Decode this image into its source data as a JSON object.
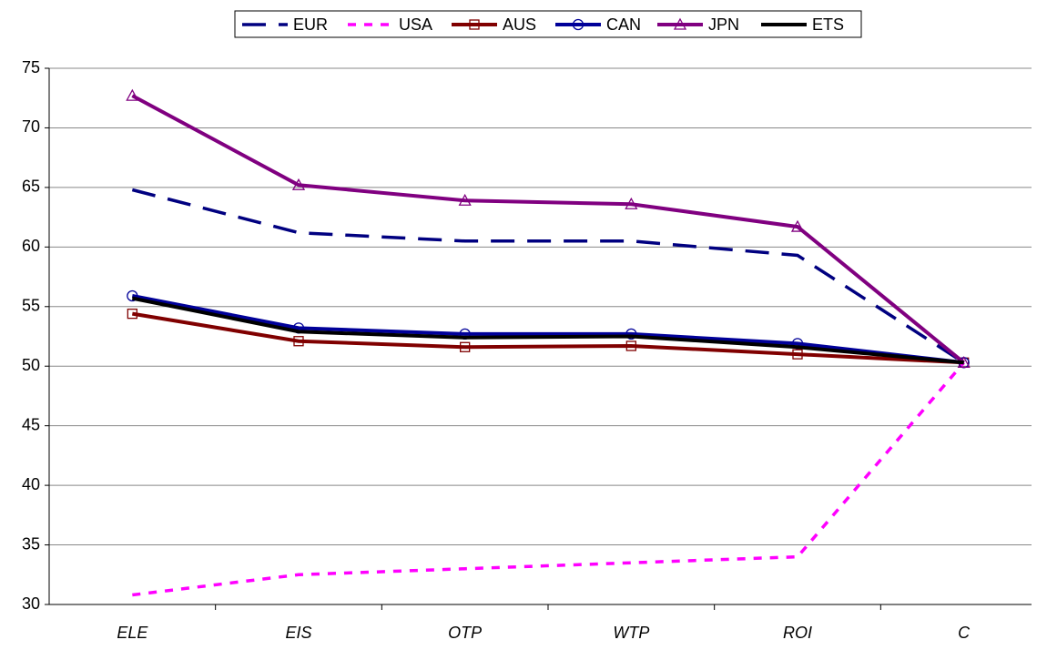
{
  "chart_data": {
    "type": "line",
    "categories": [
      "ELE",
      "EIS",
      "OTP",
      "WTP",
      "ROI",
      "C"
    ],
    "series": [
      {
        "name": "EUR",
        "color": "#000080",
        "dash": true,
        "marker": "none",
        "values": [
          64.8,
          61.2,
          60.5,
          60.5,
          59.3,
          50.3
        ]
      },
      {
        "name": "USA",
        "color": "#ff00ff",
        "dash": true,
        "marker": "none",
        "values": [
          30.8,
          32.5,
          33.0,
          33.5,
          34.0,
          50.3
        ]
      },
      {
        "name": "AUS",
        "color": "#800000",
        "dash": false,
        "marker": "square",
        "values": [
          54.4,
          52.1,
          51.6,
          51.7,
          51.0,
          50.3
        ]
      },
      {
        "name": "CAN",
        "color": "#000099",
        "dash": false,
        "marker": "circle",
        "values": [
          55.9,
          53.2,
          52.7,
          52.7,
          51.9,
          50.3
        ]
      },
      {
        "name": "JPN",
        "color": "#800080",
        "dash": false,
        "marker": "triangle",
        "values": [
          72.7,
          65.2,
          63.9,
          63.6,
          61.7,
          50.3
        ]
      },
      {
        "name": "ETS",
        "color": "#000000",
        "dash": false,
        "marker": "none",
        "values": [
          55.7,
          52.9,
          52.4,
          52.5,
          51.6,
          50.3
        ]
      }
    ],
    "ylim": [
      30,
      75
    ],
    "yticks": [
      30,
      35,
      40,
      45,
      50,
      55,
      60,
      65,
      70,
      75
    ],
    "grid": true,
    "legend": "top"
  }
}
